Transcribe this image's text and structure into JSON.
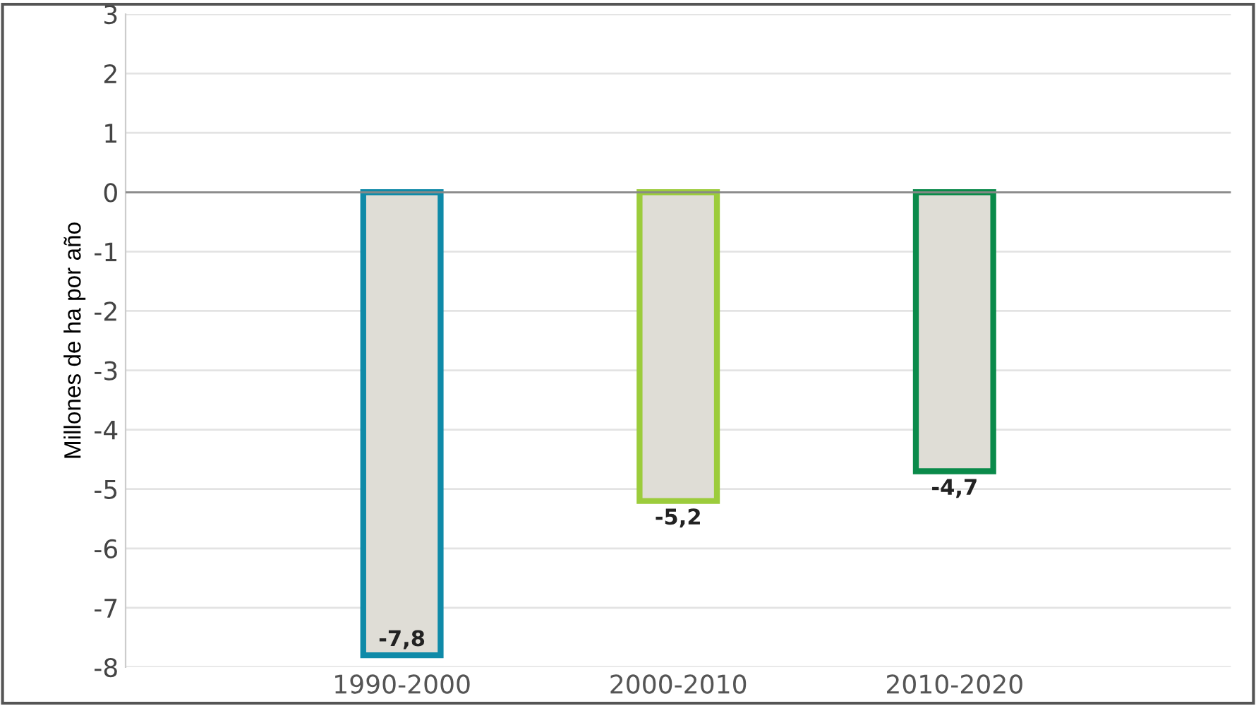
{
  "chart_data": {
    "type": "bar",
    "ylabel": "Millones de ha por año",
    "categories": [
      "1990-2000",
      "2000-2010",
      "2010-2020"
    ],
    "values": [
      -7.8,
      -5.2,
      -4.7
    ],
    "value_labels": [
      "-7,8",
      "-5,2",
      "-4,7"
    ],
    "colors": [
      "#0f8aa8",
      "#9ccc3c",
      "#0a8a4a"
    ],
    "ylim": [
      -8,
      3
    ],
    "yticks": [
      -8,
      -7,
      -6,
      -5,
      -4,
      -3,
      -2,
      -1,
      0,
      1,
      2,
      3
    ],
    "ref_lines": [
      {
        "axis": "y",
        "value": 0,
        "color": "#888888"
      }
    ],
    "grid": "y"
  }
}
